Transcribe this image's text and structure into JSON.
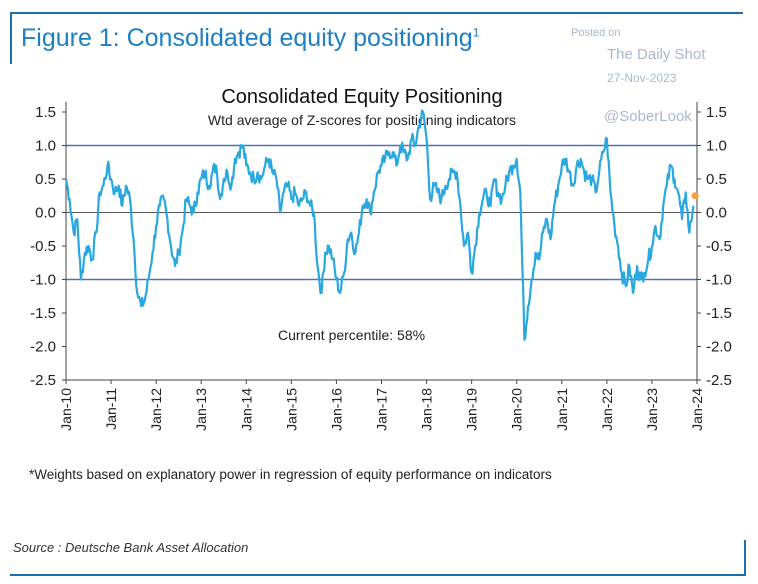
{
  "figure": {
    "title": "Figure 1: Consolidated equity positioning",
    "title_sup": "1",
    "footnote": "*Weights based on explanatory power in regression of equity performance on indicators",
    "source": "Source : Deutsche Bank Asset Allocation"
  },
  "watermark": {
    "posted_on": "Posted on",
    "site": "The Daily Shot",
    "date": "27-Nov-2023",
    "handle": "@SoberLook"
  },
  "colors": {
    "series": "#29a8e0",
    "reference_lines": "#4a72b8",
    "current_marker": "#f0a040",
    "frame": "#1d6fb0",
    "title": "#1d7fc4"
  },
  "chart_data": {
    "type": "line",
    "title": "Consolidated Equity Positioning",
    "subtitle": "Wtd average of Z-scores for positioning indicators",
    "annotation": "Current percentile: 58%",
    "xlabel": "",
    "ylabel": "",
    "ylim": [
      -2.5,
      1.5
    ],
    "yticks": [
      "1.5",
      "1.0",
      "0.5",
      "0.0",
      "-0.5",
      "-1.0",
      "-1.5",
      "-2.0",
      "-2.5"
    ],
    "xlim": [
      2010,
      2024
    ],
    "xticks": [
      "Jan-10",
      "Jan-11",
      "Jan-12",
      "Jan-13",
      "Jan-14",
      "Jan-15",
      "Jan-16",
      "Jan-17",
      "Jan-18",
      "Jan-19",
      "Jan-20",
      "Jan-21",
      "Jan-22",
      "Jan-23",
      "Jan-24"
    ],
    "reference_lines": [
      1.0,
      0.0,
      -1.0
    ],
    "grid": false,
    "legend": "none",
    "series": [
      {
        "x": [
          2010.0,
          2010.08,
          2010.17,
          2010.25,
          2010.33,
          2010.42,
          2010.5,
          2010.58,
          2010.67,
          2010.75,
          2010.83,
          2010.92,
          2011.0,
          2011.08,
          2011.17,
          2011.25,
          2011.33,
          2011.42,
          2011.5,
          2011.58,
          2011.67,
          2011.75,
          2011.83,
          2011.92,
          2012.0,
          2012.08,
          2012.17,
          2012.25,
          2012.33,
          2012.42,
          2012.5,
          2012.58,
          2012.67,
          2012.75,
          2012.83,
          2012.92,
          2013.0,
          2013.08,
          2013.17,
          2013.25,
          2013.33,
          2013.42,
          2013.5,
          2013.58,
          2013.67,
          2013.75,
          2013.83,
          2013.92,
          2014.0,
          2014.08,
          2014.17,
          2014.25,
          2014.33,
          2014.42,
          2014.5,
          2014.58,
          2014.67,
          2014.75,
          2014.83,
          2014.92,
          2015.0,
          2015.08,
          2015.17,
          2015.25,
          2015.33,
          2015.42,
          2015.5,
          2015.58,
          2015.67,
          2015.75,
          2015.83,
          2015.92,
          2016.0,
          2016.08,
          2016.17,
          2016.25,
          2016.33,
          2016.42,
          2016.5,
          2016.58,
          2016.67,
          2016.75,
          2016.83,
          2016.92,
          2017.0,
          2017.08,
          2017.17,
          2017.25,
          2017.33,
          2017.42,
          2017.5,
          2017.58,
          2017.67,
          2017.75,
          2017.83,
          2017.92,
          2018.0,
          2018.08,
          2018.17,
          2018.25,
          2018.33,
          2018.42,
          2018.5,
          2018.58,
          2018.67,
          2018.75,
          2018.83,
          2018.92,
          2019.0,
          2019.08,
          2019.17,
          2019.25,
          2019.33,
          2019.42,
          2019.5,
          2019.58,
          2019.67,
          2019.75,
          2019.83,
          2019.92,
          2020.0,
          2020.08,
          2020.17,
          2020.25,
          2020.33,
          2020.42,
          2020.5,
          2020.58,
          2020.67,
          2020.75,
          2020.83,
          2020.92,
          2021.0,
          2021.08,
          2021.17,
          2021.25,
          2021.33,
          2021.42,
          2021.5,
          2021.58,
          2021.67,
          2021.75,
          2021.83,
          2021.92,
          2022.0,
          2022.08,
          2022.17,
          2022.25,
          2022.33,
          2022.42,
          2022.5,
          2022.58,
          2022.67,
          2022.75,
          2022.83,
          2022.92,
          2023.0,
          2023.08,
          2023.17,
          2023.25,
          2023.33,
          2023.42,
          2023.5,
          2023.58,
          2023.67,
          2023.75,
          2023.83,
          2023.92
        ],
        "y": [
          0.5,
          0.2,
          -0.3,
          -0.1,
          -1.0,
          -0.6,
          -0.5,
          -0.7,
          -0.3,
          0.3,
          0.4,
          0.7,
          0.5,
          0.3,
          0.4,
          0.1,
          0.4,
          0.2,
          -0.4,
          -1.2,
          -1.4,
          -1.3,
          -1.0,
          -0.6,
          -0.2,
          0.1,
          0.2,
          -0.1,
          -0.5,
          -0.8,
          -0.6,
          -0.3,
          0.2,
          0.1,
          0.0,
          0.3,
          0.5,
          0.6,
          0.4,
          0.6,
          0.7,
          0.2,
          0.5,
          0.6,
          0.4,
          0.8,
          0.9,
          1.0,
          0.7,
          0.6,
          0.5,
          0.6,
          0.5,
          0.7,
          0.8,
          0.6,
          0.5,
          0.0,
          0.3,
          0.4,
          0.2,
          0.3,
          0.1,
          0.2,
          0.3,
          0.1,
          0.0,
          -0.8,
          -1.2,
          -0.6,
          -0.5,
          -0.7,
          -1.0,
          -1.2,
          -0.9,
          -0.4,
          -0.3,
          -0.6,
          -0.3,
          0.1,
          0.2,
          0.0,
          0.3,
          0.6,
          0.7,
          0.8,
          0.9,
          0.9,
          0.7,
          1.0,
          0.9,
          0.8,
          1.1,
          1.0,
          1.3,
          1.5,
          1.1,
          0.2,
          0.4,
          0.3,
          0.2,
          0.4,
          0.5,
          0.6,
          0.6,
          0.1,
          -0.5,
          -0.3,
          -0.9,
          -0.5,
          0.0,
          0.2,
          0.3,
          0.1,
          0.5,
          0.3,
          0.2,
          0.4,
          0.6,
          0.7,
          0.8,
          0.3,
          -1.9,
          -1.4,
          -1.0,
          -0.6,
          -0.7,
          -0.3,
          -0.1,
          -0.4,
          0.1,
          0.4,
          0.7,
          0.8,
          0.6,
          0.4,
          0.7,
          0.8,
          0.6,
          0.5,
          0.5,
          0.3,
          0.6,
          0.9,
          1.1,
          0.3,
          -0.2,
          -0.5,
          -0.9,
          -1.1,
          -0.8,
          -1.2,
          -0.8,
          -1.0,
          -0.9,
          -0.7,
          -0.5,
          -0.2,
          -0.4,
          0.1,
          0.4,
          0.7,
          0.5,
          0.3,
          -0.1,
          0.3,
          -0.3,
          0.1
        ]
      }
    ],
    "current_point": {
      "x": 2023.96,
      "y": 0.25
    }
  }
}
